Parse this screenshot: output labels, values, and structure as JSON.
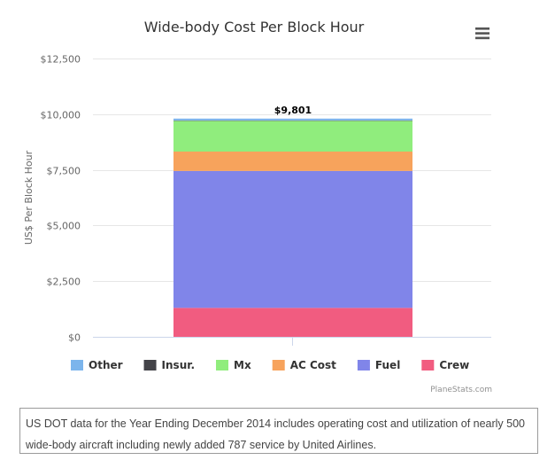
{
  "chart_data": {
    "type": "bar",
    "stacked": true,
    "title": "Wide-body Cost Per Block Hour",
    "ylabel": "US$ Per Block Hour",
    "xlabel": "",
    "ylim": [
      0,
      12500
    ],
    "yticks": [
      0,
      2500,
      5000,
      7500,
      10000,
      12500
    ],
    "ytick_labels": [
      "$0",
      "$2,500",
      "$5,000",
      "$7,500",
      "$10,000",
      "$12,500"
    ],
    "grid": true,
    "legend_position": "bottom-left",
    "series": [
      {
        "name": "Crew",
        "color": "#f15c80",
        "values": [
          1300
        ]
      },
      {
        "name": "Fuel",
        "color": "#8085e9",
        "values": [
          6150
        ]
      },
      {
        "name": "AC Cost",
        "color": "#f7a35c",
        "values": [
          870
        ]
      },
      {
        "name": "Mx",
        "color": "#90ed7d",
        "values": [
          1380
        ]
      },
      {
        "name": "Insur.",
        "color": "#434348",
        "values": [
          20
        ]
      },
      {
        "name": "Other",
        "color": "#7cb5ec",
        "values": [
          81
        ]
      }
    ],
    "legend_order": [
      "Other",
      "Insur.",
      "Mx",
      "AC Cost",
      "Fuel",
      "Crew"
    ],
    "total_label": "$9,801"
  },
  "credits": "PlaneStats.com",
  "menu_icon": "hamburger-menu-icon",
  "caption": "US DOT data for the Year Ending December 2014 includes operating cost and utilization of nearly 500 wide-body aircraft including newly added 787 service by United Airlines."
}
